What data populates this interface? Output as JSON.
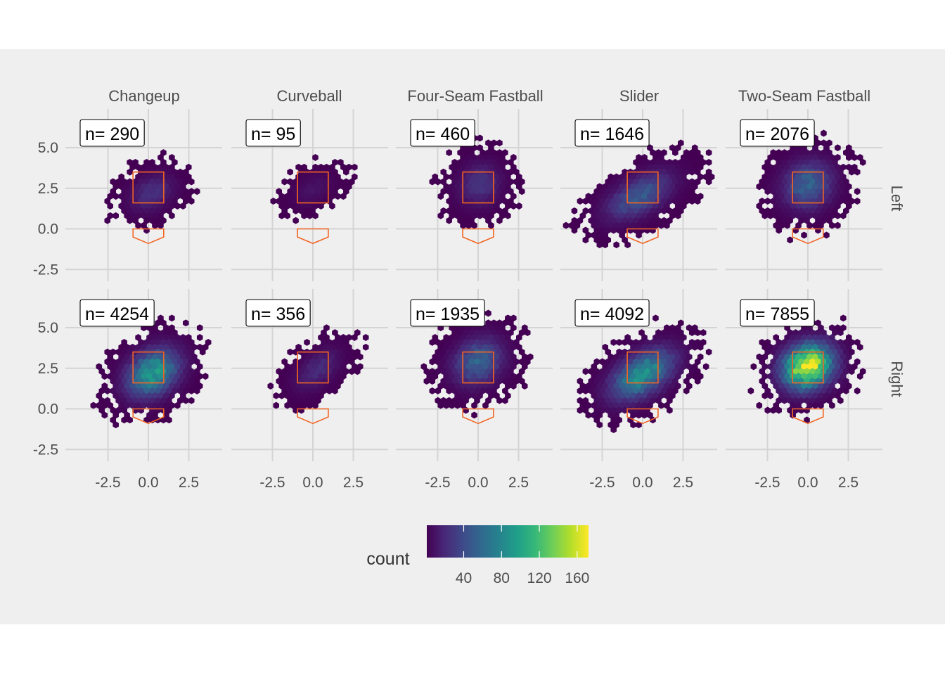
{
  "chart_data": {
    "type": "heatmap",
    "geom": "hexbin",
    "title": "",
    "xlabel": "",
    "ylabel": "",
    "columns": [
      "Changeup",
      "Curveball",
      "Four-Seam Fastball",
      "Slider",
      "Two-Seam Fastball"
    ],
    "rows": [
      "Left",
      "Right"
    ],
    "x_ticks": [
      "-2.5",
      "0.0",
      "2.5"
    ],
    "y_ticks": [
      "5.0",
      "2.5",
      "0.0",
      "-2.5"
    ],
    "x_tick_values": [
      -2.5,
      0.0,
      2.5
    ],
    "y_tick_values": [
      5.0,
      2.5,
      0.0,
      -2.5
    ],
    "xlim": [
      -5.0,
      2.3
    ],
    "ylim": [
      -3.3,
      6.8
    ],
    "grid": true,
    "strike_zone": {
      "x": [
        -0.95,
        0.95
      ],
      "y": [
        1.6,
        3.5
      ],
      "color": "#f26522"
    },
    "home_plate": {
      "x": [
        -0.95,
        0.95
      ],
      "y_top": 0.0,
      "y_edge": -0.5,
      "y_tip": -0.9,
      "color": "#f26522"
    },
    "panels": [
      {
        "row": "Left",
        "column": "Changeup",
        "label": "n= 290",
        "n": 290,
        "center": [
          0.2,
          2.2
        ],
        "sd": [
          0.9,
          0.75
        ],
        "rho": 0.3,
        "peak": 25
      },
      {
        "row": "Left",
        "column": "Curveball",
        "label": "n= 95",
        "n": 95,
        "center": [
          0.0,
          2.4
        ],
        "sd": [
          0.8,
          0.65
        ],
        "rho": 0.4,
        "peak": 10
      },
      {
        "row": "Left",
        "column": "Four-Seam Fastball",
        "label": "n= 460",
        "n": 460,
        "center": [
          0.1,
          2.7
        ],
        "sd": [
          0.85,
          0.85
        ],
        "rho": 0.1,
        "peak": 28
      },
      {
        "row": "Left",
        "column": "Slider",
        "label": "n= 1646",
        "n": 1646,
        "center": [
          -0.2,
          2.0
        ],
        "sd": [
          1.3,
          0.95
        ],
        "rho": 0.55,
        "peak": 50
      },
      {
        "row": "Left",
        "column": "Two-Seam Fastball",
        "label": "n= 2076",
        "n": 2076,
        "center": [
          0.0,
          2.7
        ],
        "sd": [
          1.0,
          0.95
        ],
        "rho": 0.1,
        "peak": 55
      },
      {
        "row": "Right",
        "column": "Changeup",
        "label": "n= 4254",
        "n": 4254,
        "center": [
          0.3,
          2.2
        ],
        "sd": [
          1.05,
          0.95
        ],
        "rho": 0.3,
        "peak": 95
      },
      {
        "row": "Right",
        "column": "Curveball",
        "label": "n= 356",
        "n": 356,
        "center": [
          0.3,
          2.4
        ],
        "sd": [
          0.9,
          0.85
        ],
        "rho": 0.5,
        "peak": 22
      },
      {
        "row": "Right",
        "column": "Four-Seam Fastball",
        "label": "n= 1935",
        "n": 1935,
        "center": [
          0.0,
          2.9
        ],
        "sd": [
          1.0,
          0.95
        ],
        "rho": 0.2,
        "peak": 55
      },
      {
        "row": "Right",
        "column": "Slider",
        "label": "n= 4092",
        "n": 4092,
        "center": [
          0.0,
          2.1
        ],
        "sd": [
          1.25,
          1.0
        ],
        "rho": 0.5,
        "peak": 90
      },
      {
        "row": "Right",
        "column": "Two-Seam Fastball",
        "label": "n= 7855",
        "n": 7855,
        "center": [
          0.0,
          2.6
        ],
        "sd": [
          1.0,
          0.9
        ],
        "rho": 0.15,
        "peak": 170
      }
    ],
    "legend": {
      "title": "count",
      "position": "bottom",
      "ticks": [
        "40",
        "80",
        "120",
        "160"
      ],
      "tick_values": [
        40,
        80,
        120,
        160
      ],
      "range": [
        1,
        172
      ],
      "colors": [
        "#440154",
        "#482878",
        "#3e4a89",
        "#31688e",
        "#26828e",
        "#1f9e89",
        "#35b779",
        "#6ece58",
        "#b5de2b",
        "#fde725"
      ]
    }
  },
  "colors": {
    "panel_background": "#efefef",
    "grid": "#d4d4d4",
    "text": "#4d4d4d",
    "accent": "#f26522"
  }
}
